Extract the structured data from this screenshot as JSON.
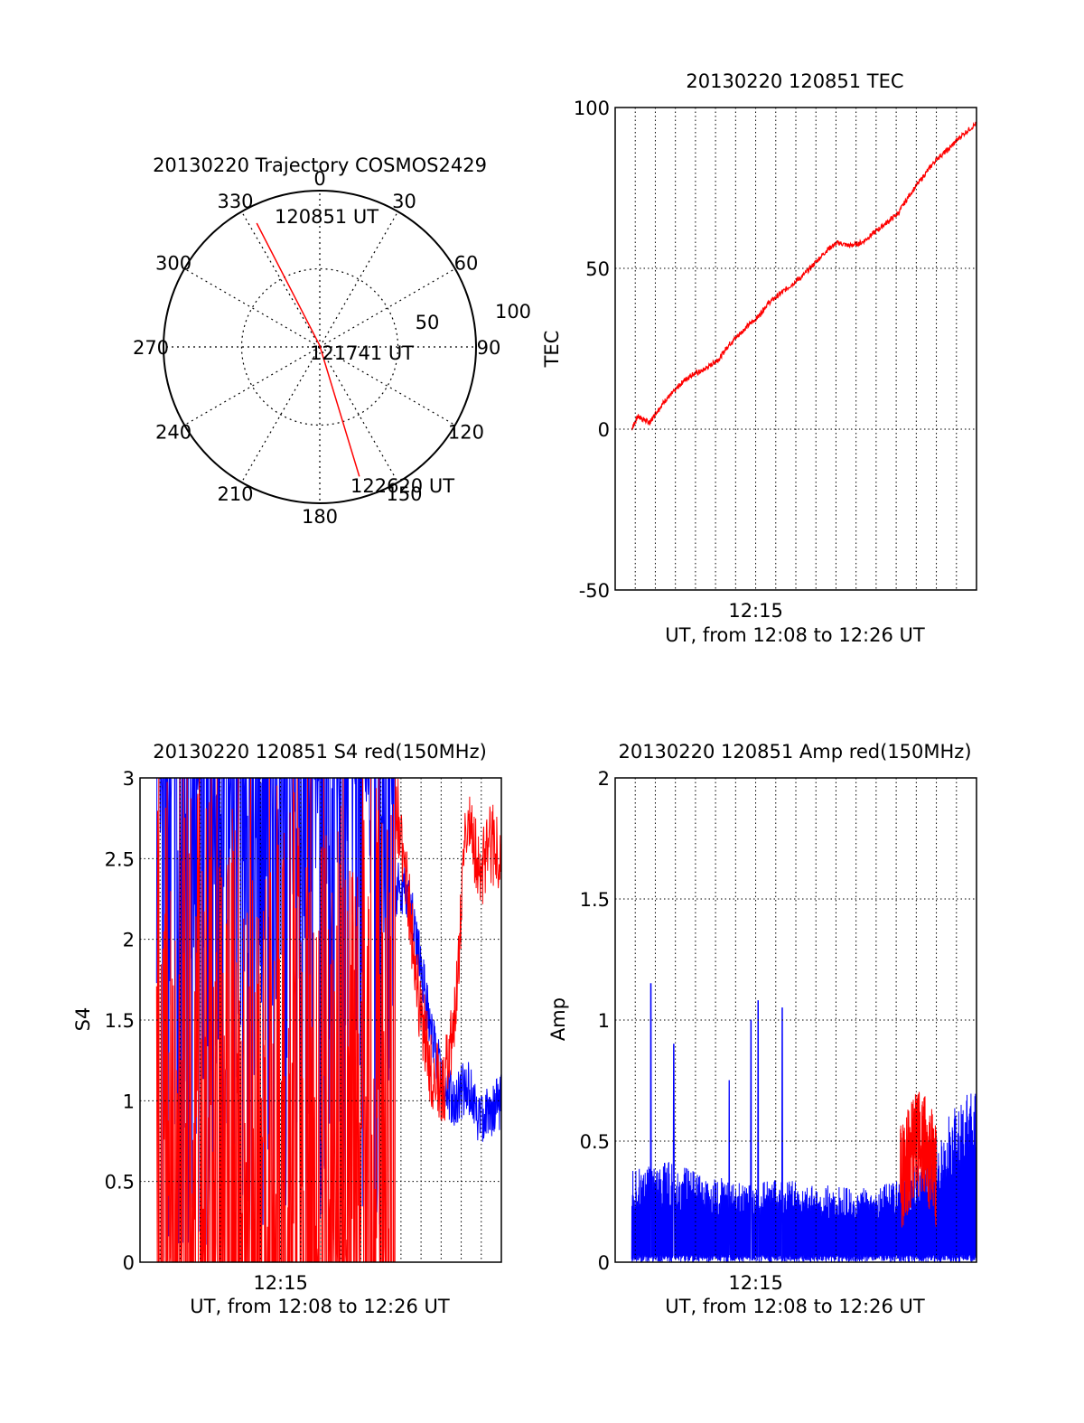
{
  "chart_data": [
    {
      "type": "polar",
      "title": "20130220 Trajectory COSMOS2429",
      "angle_labels": [
        "0",
        "30",
        "60",
        "90",
        "120",
        "150",
        "180",
        "210",
        "240",
        "270",
        "300",
        "330"
      ],
      "radius_labels": [
        "50",
        "100"
      ],
      "trajectory": {
        "color": "#ff0000",
        "points": [
          {
            "azimuth": 333,
            "elevation": 10
          },
          {
            "azimuth": 355,
            "elevation": 89
          },
          {
            "azimuth": 163,
            "elevation": 12
          }
        ]
      },
      "annotations": [
        "120851 UT",
        "121741 UT",
        "122620 UT"
      ]
    },
    {
      "type": "line",
      "title": "20130220 120851 TEC",
      "xlabel": "UT, from 12:08 to 12:26 UT",
      "ylabel": "TEC",
      "xlim": [
        12.1333,
        12.4333
      ],
      "ylim": [
        -50,
        100
      ],
      "yticks": [
        "100",
        "50",
        "0",
        "-50"
      ],
      "xticks": [
        "12:15"
      ],
      "grid": true,
      "series": [
        {
          "color": "#ff0000",
          "x": [
            12.147,
            12.152,
            12.157,
            12.162,
            12.167,
            12.175,
            12.183,
            12.19,
            12.197,
            12.205,
            12.213,
            12.22,
            12.227,
            12.235,
            12.243,
            12.252,
            12.26,
            12.27,
            12.28,
            12.29,
            12.3,
            12.31,
            12.318,
            12.328,
            12.338,
            12.348,
            12.358,
            12.368,
            12.378,
            12.39,
            12.4,
            12.41,
            12.42,
            12.433
          ],
          "values": [
            0,
            4,
            3,
            2,
            5,
            9,
            12,
            15,
            17,
            18,
            20,
            22,
            26,
            29,
            32,
            35,
            39,
            42,
            45,
            48,
            52,
            56,
            58,
            57,
            58,
            61,
            64,
            67,
            73,
            79,
            84,
            87,
            91,
            95
          ]
        }
      ]
    },
    {
      "type": "line",
      "title": "20130220 120851 S4 red(150MHz)",
      "xlabel": "UT, from 12:08 to 12:26 UT",
      "ylabel": "S4",
      "xlim": [
        12.1333,
        12.4333
      ],
      "ylim": [
        0,
        3
      ],
      "yticks": [
        "3",
        "2.5",
        "2",
        "1.5",
        "1",
        "0.5",
        "0"
      ],
      "xticks": [
        "12:15"
      ],
      "grid": true,
      "series": [
        {
          "color": "#0000ff",
          "x": [
            12.355,
            12.365,
            12.375,
            12.385,
            12.395,
            12.405,
            12.415,
            12.425,
            12.433
          ],
          "values": [
            2.3,
            1.9,
            1.4,
            1.1,
            1.0,
            1.1,
            0.9,
            0.95,
            1.0
          ]
        },
        {
          "color": "#ff0000",
          "x": [
            12.345,
            12.355,
            12.365,
            12.375,
            12.385,
            12.395,
            12.405,
            12.415,
            12.425,
            12.433
          ],
          "values": [
            2.9,
            2.3,
            1.6,
            1.2,
            1.05,
            1.5,
            2.8,
            2.4,
            2.6,
            2.5
          ]
        }
      ]
    },
    {
      "type": "line",
      "title": "20130220 120851 Amp red(150MHz)",
      "xlabel": "UT, from 12:08 to 12:26 UT",
      "ylabel": "Amp",
      "xlim": [
        12.1333,
        12.4333
      ],
      "ylim": [
        0,
        2
      ],
      "yticks": [
        "2",
        "1.5",
        "1",
        "0.5",
        "0"
      ],
      "xticks": [
        "12:15"
      ],
      "grid": true,
      "series": [
        {
          "color": "#0000ff",
          "x": [
            12.147,
            12.175,
            12.2,
            12.24,
            12.27,
            12.3,
            12.33,
            12.37,
            12.4,
            12.433
          ],
          "values": [
            0.2,
            0.22,
            0.2,
            0.17,
            0.18,
            0.17,
            0.16,
            0.18,
            0.28,
            0.4
          ]
        },
        {
          "color": "#ff0000",
          "x": [
            12.37,
            12.378,
            12.386,
            12.394,
            12.4
          ],
          "values": [
            0.3,
            0.4,
            0.45,
            0.4,
            0.3
          ]
        }
      ]
    }
  ]
}
